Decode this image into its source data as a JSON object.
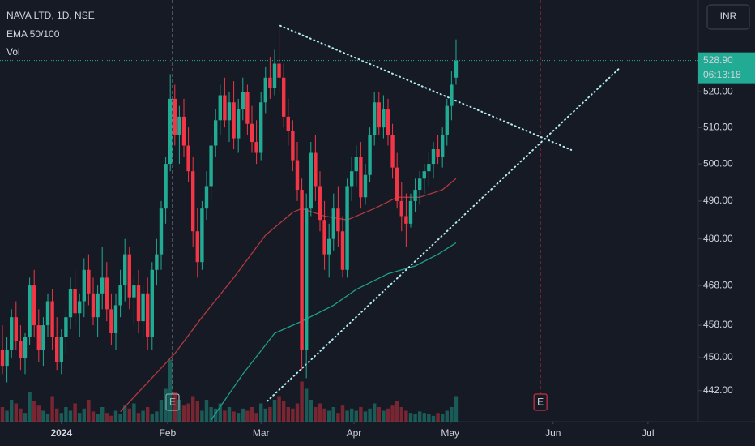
{
  "chart_data": {
    "type": "candlestick",
    "title": "NAVA LTD, 1D, NSE",
    "indicator": "EMA 50/100",
    "volume_label": "Vol",
    "currency": "INR",
    "log_scale": true,
    "grid": false,
    "up_color": "#22ab94",
    "down_color": "#f23645",
    "xlim": [
      -0.536,
      153.4
    ],
    "xticks": [
      {
        "value": 13,
        "label": "2024"
      },
      {
        "value": 36.4,
        "label": "Feb"
      },
      {
        "value": 57,
        "label": "Mar"
      },
      {
        "value": 77.5,
        "label": "Apr"
      },
      {
        "value": 98.7,
        "label": "May"
      },
      {
        "value": 121.4,
        "label": "Jun"
      },
      {
        "value": 142.3,
        "label": "Jul"
      }
    ],
    "ylim": [
      434.6,
      546.6
    ],
    "yticks": [
      {
        "value": 520,
        "label": "520.00"
      },
      {
        "value": 510,
        "label": "510.00"
      },
      {
        "value": 500,
        "label": "500.00"
      },
      {
        "value": 490,
        "label": "490.00"
      },
      {
        "value": 480,
        "label": "480.00"
      },
      {
        "value": 468,
        "label": "468.00"
      },
      {
        "value": 458,
        "label": "458.00"
      },
      {
        "value": 450,
        "label": "450.00"
      },
      {
        "value": 442,
        "label": "442.00"
      }
    ],
    "last_price": {
      "value": 528.9,
      "label": "528.90"
    },
    "countdown": "06:13:18",
    "open": [
      452,
      448,
      452,
      460,
      454,
      450,
      455,
      468,
      458,
      452,
      458,
      464,
      455,
      449,
      455,
      460,
      467,
      461,
      464,
      472,
      466,
      460,
      466,
      470,
      462,
      456,
      463,
      468,
      476,
      465,
      468,
      459,
      466,
      455,
      472,
      476,
      488,
      500,
      518,
      508,
      513,
      505,
      498,
      482,
      474,
      488,
      494,
      505,
      512,
      519,
      512,
      517,
      507,
      515,
      520,
      511,
      506,
      503,
      517,
      524,
      521,
      528,
      524,
      513,
      509,
      501,
      493,
      452,
      488,
      503,
      494,
      485,
      476,
      480,
      488,
      482,
      472,
      494,
      498,
      502,
      491,
      497,
      508,
      517,
      510,
      515,
      508,
      499,
      490,
      486,
      484,
      490,
      493,
      496,
      498,
      500,
      504,
      502,
      508,
      516,
      524
    ],
    "high": [
      458,
      455,
      462,
      464,
      458,
      456,
      470,
      472,
      462,
      460,
      466,
      467,
      460,
      457,
      462,
      470,
      472,
      466,
      475,
      476,
      470,
      468,
      478,
      474,
      466,
      466,
      472,
      480,
      478,
      470,
      472,
      468,
      470,
      474,
      480,
      490,
      502,
      525,
      522,
      516,
      518,
      510,
      502,
      488,
      490,
      498,
      508,
      515,
      522,
      524,
      520,
      523,
      518,
      524,
      522,
      516,
      512,
      520,
      527,
      530,
      532,
      539,
      528,
      518,
      512,
      506,
      496,
      492,
      506,
      508,
      498,
      490,
      484,
      492,
      494,
      486,
      496,
      502,
      505,
      506,
      500,
      510,
      520,
      520,
      519,
      518,
      511,
      503,
      495,
      492,
      492,
      496,
      498,
      500,
      503,
      506,
      508,
      510,
      518,
      526,
      535
    ],
    "low": [
      446,
      444,
      450,
      452,
      447,
      446,
      453,
      455,
      449,
      448,
      455,
      452,
      447,
      446,
      451,
      457,
      458,
      455,
      460,
      463,
      458,
      455,
      462,
      459,
      453,
      452,
      460,
      464,
      462,
      458,
      456,
      455,
      452,
      452,
      468,
      472,
      484,
      498,
      505,
      500,
      502,
      495,
      478,
      470,
      472,
      485,
      490,
      502,
      508,
      510,
      506,
      504,
      503,
      512,
      508,
      503,
      500,
      501,
      514,
      518,
      519,
      520,
      510,
      505,
      498,
      490,
      447,
      445,
      486,
      490,
      482,
      472,
      470,
      477,
      478,
      470,
      470,
      490,
      494,
      488,
      489,
      495,
      505,
      508,
      507,
      505,
      496,
      488,
      482,
      478,
      483,
      487,
      489,
      492,
      494,
      496,
      500,
      499,
      505,
      512,
      522
    ],
    "close": [
      448,
      452,
      460,
      454,
      450,
      455,
      468,
      458,
      452,
      458,
      464,
      455,
      449,
      455,
      460,
      467,
      461,
      464,
      472,
      466,
      460,
      466,
      470,
      462,
      456,
      463,
      468,
      476,
      465,
      468,
      459,
      466,
      455,
      472,
      476,
      488,
      500,
      518,
      508,
      513,
      505,
      498,
      482,
      474,
      488,
      494,
      505,
      512,
      519,
      512,
      517,
      507,
      515,
      520,
      511,
      506,
      503,
      517,
      524,
      521,
      528,
      524,
      513,
      509,
      501,
      493,
      452,
      488,
      503,
      494,
      485,
      476,
      480,
      488,
      482,
      472,
      494,
      498,
      502,
      491,
      497,
      508,
      517,
      510,
      515,
      508,
      499,
      490,
      486,
      484,
      490,
      493,
      496,
      498,
      500,
      504,
      502,
      508,
      516,
      522,
      528.9
    ],
    "volume": [
      20,
      15,
      30,
      25,
      18,
      12,
      40,
      28,
      22,
      15,
      10,
      35,
      18,
      12,
      20,
      15,
      25,
      12,
      18,
      30,
      14,
      10,
      20,
      12,
      8,
      15,
      10,
      22,
      18,
      25,
      12,
      15,
      20,
      10,
      14,
      30,
      45,
      85,
      40,
      30,
      22,
      25,
      35,
      28,
      15,
      30,
      20,
      18,
      25,
      15,
      20,
      14,
      12,
      18,
      15,
      20,
      12,
      25,
      18,
      20,
      30,
      35,
      28,
      20,
      18,
      25,
      55,
      45,
      30,
      20,
      25,
      18,
      15,
      20,
      12,
      22,
      15,
      18,
      15,
      20,
      14,
      18,
      25,
      20,
      15,
      18,
      22,
      28,
      20,
      15,
      12,
      10,
      14,
      12,
      10,
      8,
      12,
      10,
      15,
      20,
      35
    ],
    "volume_lim": [
      0,
      100
    ],
    "emas": [
      {
        "color": "#b2393f",
        "x": [
          26,
          38,
          44,
          51,
          58,
          64,
          66,
          71,
          76,
          82,
          87,
          92,
          97,
          100
        ],
        "values": [
          437,
          451,
          460,
          470,
          481,
          487,
          488,
          486,
          485,
          488,
          491,
          491,
          493,
          496
        ]
      },
      {
        "color": "#1f9e8c",
        "x": [
          46,
          53,
          60,
          66,
          73,
          78,
          85,
          91,
          96,
          100
        ],
        "values": [
          435,
          446,
          456,
          459,
          463,
          467,
          471,
          473,
          476,
          479
        ]
      }
    ],
    "trendlines": [
      {
        "x": [
          61.25,
          125.4
        ],
        "values": [
          539,
          503.8
        ]
      },
      {
        "x": [
          58.4,
          136.1
        ],
        "values": [
          439.5,
          526.8
        ]
      }
    ],
    "events": [
      {
        "x": 37.5,
        "label": "E",
        "color": "#d1d4dc"
      },
      {
        "x": 118.6,
        "label": "E",
        "color": "#f23645"
      }
    ]
  }
}
